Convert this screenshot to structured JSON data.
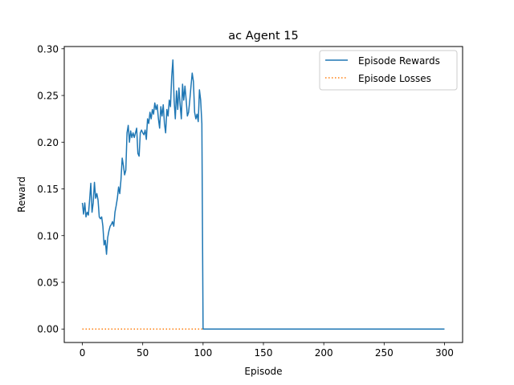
{
  "chart_data": {
    "type": "line",
    "title": "ac Agent 15",
    "xlabel": "Episode",
    "ylabel": "Reward",
    "xlim": [
      -15,
      315
    ],
    "ylim": [
      -0.0144,
      0.3024
    ],
    "xticks": [
      0,
      50,
      100,
      150,
      200,
      250,
      300
    ],
    "yticks": [
      0.0,
      0.05,
      0.1,
      0.15,
      0.2,
      0.25,
      0.3
    ],
    "xtick_labels": [
      "0",
      "50",
      "100",
      "150",
      "200",
      "250",
      "300"
    ],
    "ytick_labels": [
      "0.00",
      "0.05",
      "0.10",
      "0.15",
      "0.20",
      "0.25",
      "0.30"
    ],
    "grid": false,
    "legend_position": "top-right",
    "series": [
      {
        "name": "Episode Rewards",
        "color": "#1f77b4",
        "style": "solid",
        "x": [
          0,
          1,
          2,
          3,
          4,
          5,
          6,
          7,
          8,
          9,
          10,
          11,
          12,
          13,
          14,
          15,
          16,
          17,
          18,
          19,
          20,
          21,
          22,
          23,
          24,
          25,
          26,
          27,
          28,
          29,
          30,
          31,
          32,
          33,
          34,
          35,
          36,
          37,
          38,
          39,
          40,
          41,
          42,
          43,
          44,
          45,
          46,
          47,
          48,
          49,
          50,
          51,
          52,
          53,
          54,
          55,
          56,
          57,
          58,
          59,
          60,
          61,
          62,
          63,
          64,
          65,
          66,
          67,
          68,
          69,
          70,
          71,
          72,
          73,
          74,
          75,
          76,
          77,
          78,
          79,
          80,
          81,
          82,
          83,
          84,
          85,
          86,
          87,
          88,
          89,
          90,
          91,
          92,
          93,
          94,
          95,
          96,
          97,
          98,
          99,
          100,
          101,
          300
        ],
        "values": [
          0.135,
          0.123,
          0.135,
          0.12,
          0.125,
          0.122,
          0.138,
          0.156,
          0.125,
          0.135,
          0.157,
          0.14,
          0.145,
          0.138,
          0.12,
          0.118,
          0.12,
          0.11,
          0.09,
          0.095,
          0.08,
          0.098,
          0.105,
          0.11,
          0.112,
          0.115,
          0.11,
          0.125,
          0.132,
          0.14,
          0.152,
          0.145,
          0.16,
          0.183,
          0.175,
          0.165,
          0.17,
          0.21,
          0.218,
          0.2,
          0.212,
          0.205,
          0.21,
          0.205,
          0.21,
          0.215,
          0.188,
          0.185,
          0.21,
          0.213,
          0.21,
          0.208,
          0.213,
          0.203,
          0.225,
          0.22,
          0.232,
          0.225,
          0.235,
          0.23,
          0.242,
          0.235,
          0.24,
          0.225,
          0.215,
          0.238,
          0.228,
          0.24,
          0.22,
          0.21,
          0.235,
          0.228,
          0.245,
          0.238,
          0.27,
          0.288,
          0.245,
          0.225,
          0.255,
          0.235,
          0.258,
          0.24,
          0.225,
          0.262,
          0.245,
          0.26,
          0.245,
          0.228,
          0.232,
          0.245,
          0.26,
          0.274,
          0.265,
          0.232,
          0.225,
          0.23,
          0.222,
          0.256,
          0.245,
          0.22,
          0.0,
          0.0,
          0.0
        ]
      },
      {
        "name": "Episode Losses",
        "color": "#ff7f0e",
        "style": "dotted",
        "x": [
          0,
          300
        ],
        "values": [
          0.0,
          0.0
        ]
      }
    ]
  }
}
